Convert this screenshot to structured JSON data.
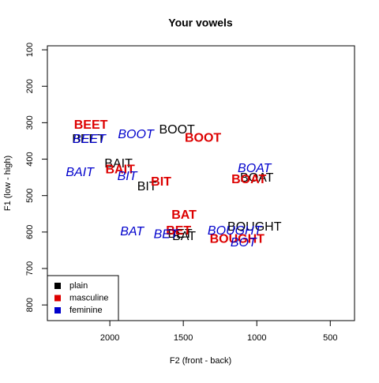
{
  "chart_data": {
    "type": "text-scatter",
    "title": "Your vowels",
    "x_label": "F2 (front - back)",
    "y_label": "F1 (low - high)",
    "xlim": [
      2425,
      335
    ],
    "ylim": [
      843,
      89
    ],
    "xticks": [
      2000,
      1500,
      1000,
      500
    ],
    "yticks": [
      100,
      200,
      300,
      400,
      500,
      600,
      700,
      800
    ],
    "legend_position": "bottomleft",
    "series": [
      {
        "name": "plain",
        "color": "#000000",
        "fontface": "plain",
        "labels": [
          "BEET",
          "BOOT",
          "BAIT",
          "BIT",
          "BOAT",
          "BOUGHT",
          "BET",
          "BAT"
        ],
        "x": [
          2145,
          1543,
          1941,
          1747,
          1000,
          1016,
          1522,
          1495
        ],
        "y": [
          346,
          320,
          413,
          476,
          452,
          587,
          606,
          613
        ]
      },
      {
        "name": "masculine",
        "color": "#dd0000",
        "fontface": "bold",
        "labels": [
          "BEET",
          "BOOT",
          "BAIT",
          "BIT",
          "BOAT",
          "BAT",
          "BET",
          "BOUGHT"
        ],
        "x": [
          2129,
          1366,
          1930,
          1651,
          1054,
          1495,
          1532,
          1134
        ],
        "y": [
          307,
          343,
          430,
          463,
          457,
          554,
          598,
          620
        ]
      },
      {
        "name": "feminine",
        "color": "#0000cc",
        "fontface": "italic",
        "labels": [
          "BEET",
          "BOOT",
          "BAIT",
          "BIT",
          "BOAT",
          "BAT",
          "BET",
          "BOUGHT",
          "BOT"
        ],
        "x": [
          2140,
          1823,
          2204,
          1882,
          1016,
          1849,
          1618,
          1151,
          1091
        ],
        "y": [
          346,
          333,
          437,
          448,
          426,
          600,
          607,
          598,
          630
        ]
      }
    ]
  }
}
